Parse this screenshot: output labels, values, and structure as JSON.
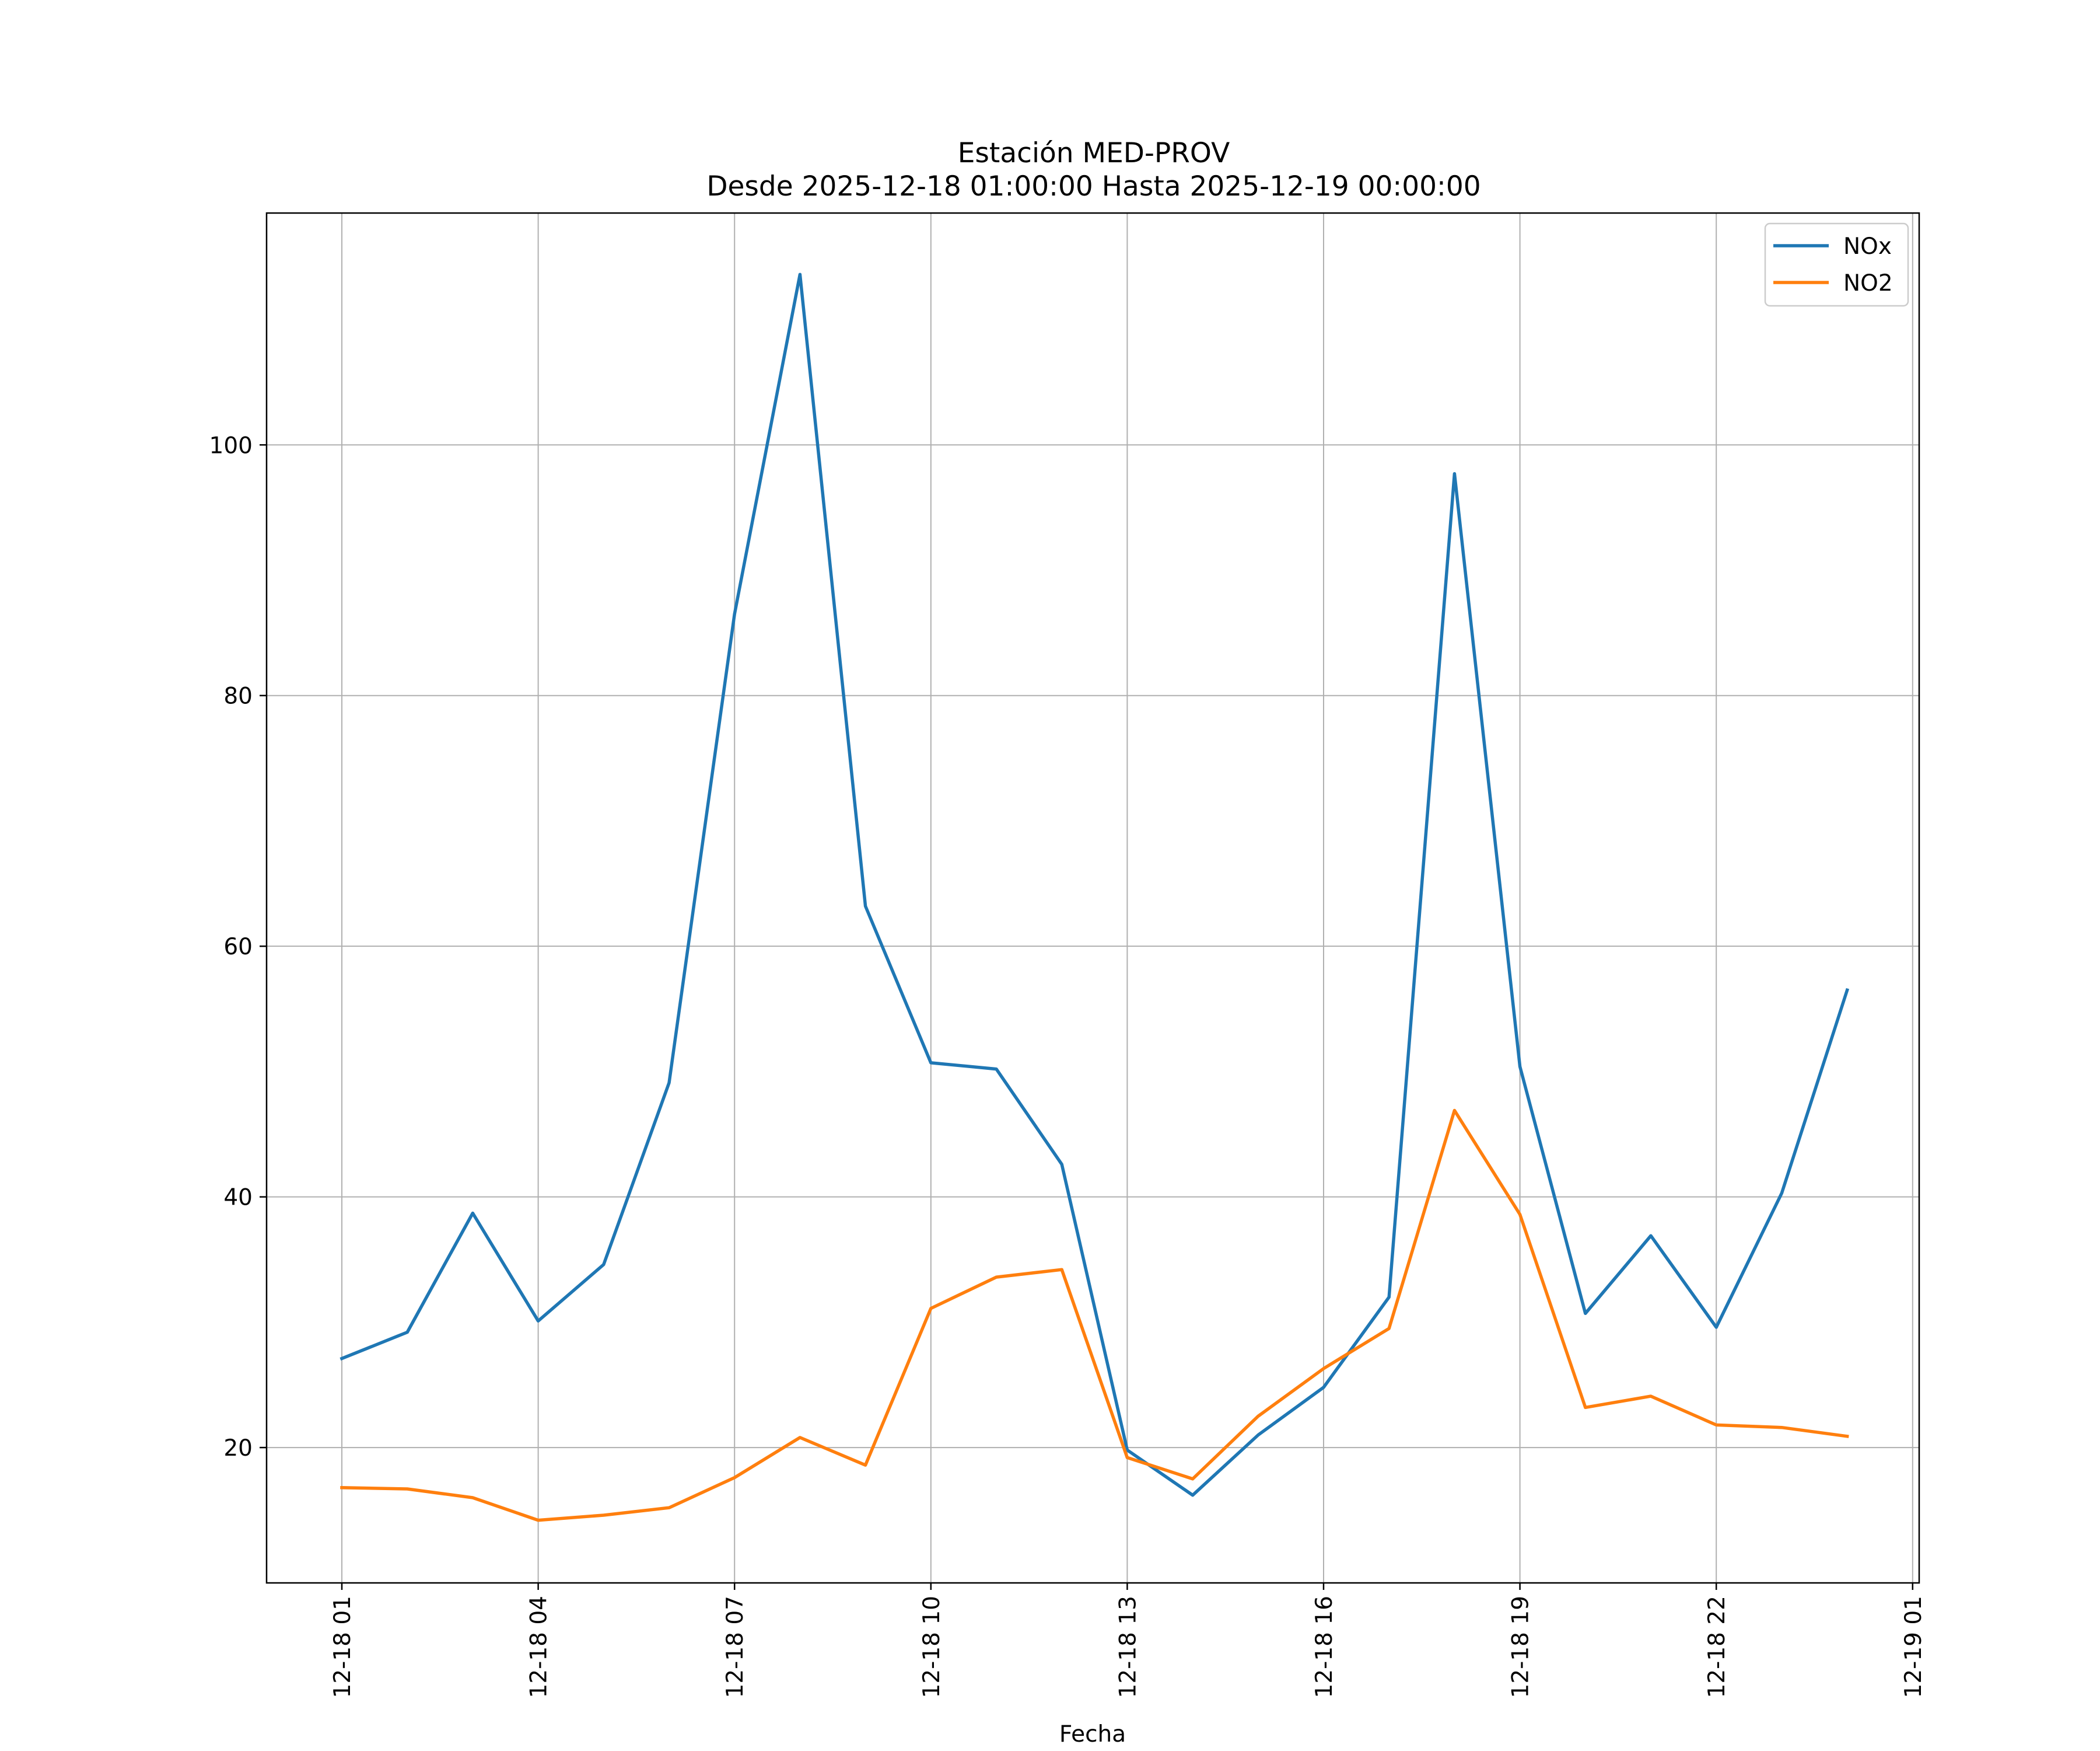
{
  "chart_data": {
    "type": "line",
    "title": [
      "Estación MED-PROV",
      "Desde 2025-12-18 01:00:00 Hasta 2025-12-19 00:00:00"
    ],
    "xlabel": "Fecha",
    "ylabel": "",
    "x": [
      "2025-12-18 01:00",
      "2025-12-18 02:00",
      "2025-12-18 03:00",
      "2025-12-18 04:00",
      "2025-12-18 05:00",
      "2025-12-18 06:00",
      "2025-12-18 07:00",
      "2025-12-18 08:00",
      "2025-12-18 09:00",
      "2025-12-18 10:00",
      "2025-12-18 11:00",
      "2025-12-18 12:00",
      "2025-12-18 13:00",
      "2025-12-18 14:00",
      "2025-12-18 15:00",
      "2025-12-18 16:00",
      "2025-12-18 17:00",
      "2025-12-18 18:00",
      "2025-12-18 19:00",
      "2025-12-18 20:00",
      "2025-12-18 21:00",
      "2025-12-18 22:00",
      "2025-12-18 23:00",
      "2025-12-19 00:00"
    ],
    "x_hours": [
      0,
      1,
      2,
      3,
      4,
      5,
      6,
      7,
      8,
      9,
      10,
      11,
      12,
      13,
      14,
      15,
      16,
      17,
      18,
      19,
      20,
      21,
      22,
      23
    ],
    "xlim_hours": [
      -1.15,
      24.1
    ],
    "ylim": [
      9.2,
      118.5
    ],
    "xticks": [
      {
        "hour": 0,
        "label": "12-18 01"
      },
      {
        "hour": 3,
        "label": "12-18 04"
      },
      {
        "hour": 6,
        "label": "12-18 07"
      },
      {
        "hour": 9,
        "label": "12-18 10"
      },
      {
        "hour": 12,
        "label": "12-18 13"
      },
      {
        "hour": 15,
        "label": "12-18 16"
      },
      {
        "hour": 18,
        "label": "12-18 19"
      },
      {
        "hour": 21,
        "label": "12-18 22"
      },
      {
        "hour": 24,
        "label": "12-19 01"
      }
    ],
    "yticks": [
      20,
      40,
      60,
      80,
      100
    ],
    "ytick_labels": [
      "20",
      "40",
      "60",
      "80",
      "100"
    ],
    "grid": true,
    "legend_position": "top-right",
    "series": [
      {
        "name": "NOx",
        "color": "#1f77b4",
        "values": [
          27.1,
          29.2,
          38.7,
          30.1,
          34.6,
          49.1,
          86.5,
          113.6,
          63.2,
          50.7,
          50.2,
          42.6,
          19.8,
          16.2,
          21.0,
          24.8,
          32.0,
          97.7,
          50.4,
          30.7,
          36.9,
          29.6,
          40.3,
          56.5
        ]
      },
      {
        "name": "NO2",
        "color": "#ff7f0e",
        "values": [
          16.8,
          16.7,
          16.0,
          14.2,
          14.6,
          15.2,
          17.6,
          20.8,
          18.6,
          31.1,
          33.6,
          34.2,
          19.2,
          17.5,
          22.5,
          26.3,
          29.5,
          46.9,
          38.6,
          23.2,
          24.1,
          21.8,
          21.6,
          20.9
        ]
      }
    ]
  }
}
